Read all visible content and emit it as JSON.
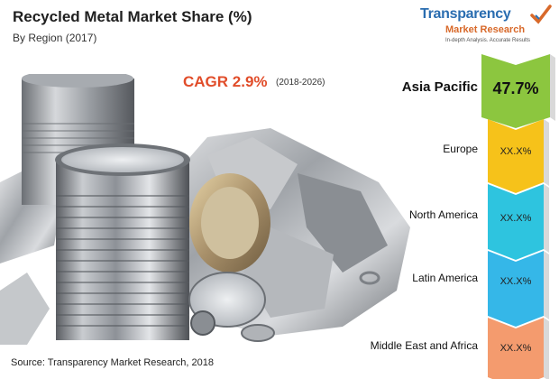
{
  "header": {
    "title": "Recycled Metal Market Share (%)",
    "subtitle": "By Region (2017)"
  },
  "logo": {
    "brand_line1": "Transparency",
    "brand_line2": "Market Research",
    "tagline": "In-depth Analysis. Accurate Results"
  },
  "cagr": {
    "label": "CAGR 2.9%",
    "years": "(2018-2026)"
  },
  "source": "Source: Transparency Market Research, 2018",
  "chart_data": {
    "type": "table",
    "title": "Recycled Metal Market Share (%)",
    "subtitle": "By Region (2017)",
    "regions": [
      {
        "name": "Asia Pacific",
        "value": "47.7%",
        "color": "#8cc63f"
      },
      {
        "name": "Europe",
        "value": "XX.X%",
        "color": "#f6c21a"
      },
      {
        "name": "North America",
        "value": "XX.X%",
        "color": "#2ec4df"
      },
      {
        "name": "Latin America",
        "value": "XX.X%",
        "color": "#35b7e8"
      },
      {
        "name": "Middle East and Africa",
        "value": "XX.X%",
        "color": "#f49b6e"
      }
    ]
  }
}
